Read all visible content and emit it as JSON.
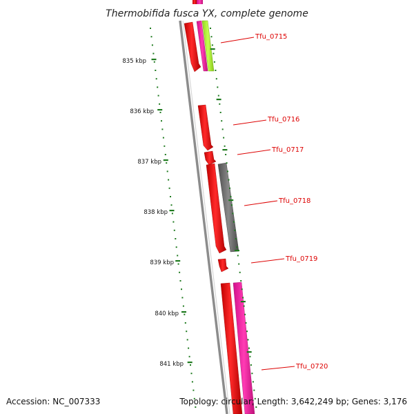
{
  "title": "Thermobifida fusca YX, complete genome",
  "footer": {
    "accession": "Accession: NC_007333",
    "stats": "Topology: circular; Length: 3,642,249 bp; Genes: 3,176"
  },
  "colors": {
    "backbone": "#8c8c8c",
    "tick": "#1e7a1e",
    "forward_gene": "#ff1a1a",
    "pink_gene": "#ff2ca8",
    "lime_gene": "#b6f23a",
    "gray_gene": "#7a7a7a",
    "label": "#dd0000"
  },
  "scale_labels": [
    {
      "kbp": 835,
      "label": "835 kbp"
    },
    {
      "kbp": 836,
      "label": "836 kbp"
    },
    {
      "kbp": 837,
      "label": "837 kbp"
    },
    {
      "kbp": 838,
      "label": "838 kbp"
    },
    {
      "kbp": 839,
      "label": "839 kbp"
    },
    {
      "kbp": 840,
      "label": "840 kbp"
    },
    {
      "kbp": 841,
      "label": "841 kbp"
    }
  ],
  "genes": [
    {
      "label": "Tfu_0715"
    },
    {
      "label": "Tfu_0716"
    },
    {
      "label": "Tfu_0717"
    },
    {
      "label": "Tfu_0718"
    },
    {
      "label": "Tfu_0719"
    },
    {
      "label": "Tfu_0720"
    }
  ]
}
